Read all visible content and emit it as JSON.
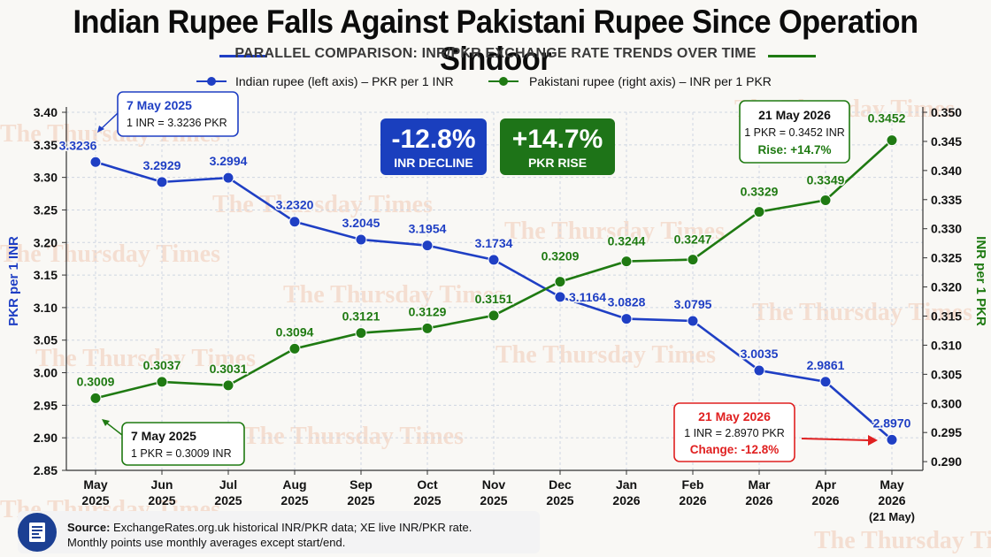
{
  "title": "Indian Rupee Falls Against Pakistani Rupee Since Operation Sindoor",
  "subtitle": "PARALLEL COMPARISON: INR/PKR EXCHANGE RATE TRENDS OVER TIME",
  "colors": {
    "inr": "#1f3fc4",
    "pkr": "#1f7a12",
    "red": "#e02020",
    "grid": "#cfd6e2"
  },
  "legend": {
    "inr": "Indian rupee (left axis) – PKR per 1 INR",
    "pkr": "Pakistani rupee (right axis) – INR per 1 PKR"
  },
  "badges": {
    "inr_value": "-12.8%",
    "inr_label": "INR DECLINE",
    "pkr_value": "+14.7%",
    "pkr_label": "PKR RISE"
  },
  "callouts": {
    "inr_start_title": "7 May 2025",
    "inr_start_text": "1 INR = 3.3236 PKR",
    "pkr_start_title": "7 May 2025",
    "pkr_start_text": "1 PKR = 0.3009 INR",
    "pkr_end_title": "21 May 2026",
    "pkr_end_text": "1 PKR = 0.3452 INR",
    "pkr_end_rise": "Rise: +14.7%",
    "inr_end_title": "21 May 2026",
    "inr_end_text": "1 INR = 2.8970 PKR",
    "inr_end_change": "Change: -12.8%"
  },
  "watermark": "The Thursday Times",
  "footer": {
    "source_label": "Source:",
    "source_text": "ExchangeRates.org.uk historical INR/PKR data; XE live INR/PKR rate.",
    "note": "Monthly points use monthly averages except start/end."
  },
  "chart_data": {
    "type": "line",
    "categories": [
      "May 2025",
      "Jun 2025",
      "Jul 2025",
      "Aug 2025",
      "Sep 2025",
      "Oct 2025",
      "Nov 2025",
      "Dec 2025",
      "Jan 2026",
      "Feb 2026",
      "Mar 2026",
      "Apr 2026",
      "May 2026"
    ],
    "x_tick_labels": [
      [
        "May",
        "2025"
      ],
      [
        "Jun",
        "2025"
      ],
      [
        "Jul",
        "2025"
      ],
      [
        "Aug",
        "2025"
      ],
      [
        "Sep",
        "2025"
      ],
      [
        "Oct",
        "2025"
      ],
      [
        "Nov",
        "2025"
      ],
      [
        "Dec",
        "2025"
      ],
      [
        "Jan",
        "2026"
      ],
      [
        "Feb",
        "2026"
      ],
      [
        "Mar",
        "2026"
      ],
      [
        "Apr",
        "2026"
      ],
      [
        "May",
        "2026",
        "(21 May)"
      ]
    ],
    "ylabel_left": "PKR per 1 INR",
    "ylabel_right": "INR per 1 PKR",
    "ylim_left": [
      2.85,
      3.4
    ],
    "yticks_left": [
      "2.85",
      "2.90",
      "2.95",
      "3.00",
      "3.05",
      "3.10",
      "3.15",
      "3.20",
      "3.25",
      "3.30",
      "3.35",
      "3.40"
    ],
    "ylim_right": [
      0.2885,
      0.35
    ],
    "yticks_right": [
      "0.290",
      "0.295",
      "0.300",
      "0.305",
      "0.310",
      "0.315",
      "0.320",
      "0.325",
      "0.330",
      "0.335",
      "0.340",
      "0.345",
      "0.350"
    ],
    "grid": true,
    "legend_position": "top",
    "series": [
      {
        "name": "Indian rupee (left axis) – PKR per 1 INR",
        "axis": "left",
        "values": [
          3.3236,
          3.2929,
          3.2994,
          3.232,
          3.2045,
          3.1954,
          3.1734,
          3.1164,
          3.0828,
          3.0795,
          3.0035,
          2.9861,
          2.897
        ],
        "labels": [
          "3.3236",
          "3.2929",
          "3.2994",
          "3.2320",
          "3.2045",
          "3.1954",
          "3.1734",
          "3.1164",
          "3.0828",
          "3.0795",
          "3.0035",
          "2.9861",
          "2.8970"
        ]
      },
      {
        "name": "Pakistani rupee (right axis) – INR per 1 PKR",
        "axis": "right",
        "values": [
          0.3009,
          0.3037,
          0.3031,
          0.3094,
          0.3121,
          0.3129,
          0.3151,
          0.3209,
          0.3244,
          0.3247,
          0.3329,
          0.3349,
          0.3452
        ],
        "labels": [
          "0.3009",
          "0.3037",
          "0.3031",
          "0.3094",
          "0.3121",
          "0.3129",
          "0.3151",
          "0.3209",
          "0.3244",
          "0.3247",
          "0.3329",
          "0.3349",
          "0.3452"
        ]
      }
    ]
  }
}
